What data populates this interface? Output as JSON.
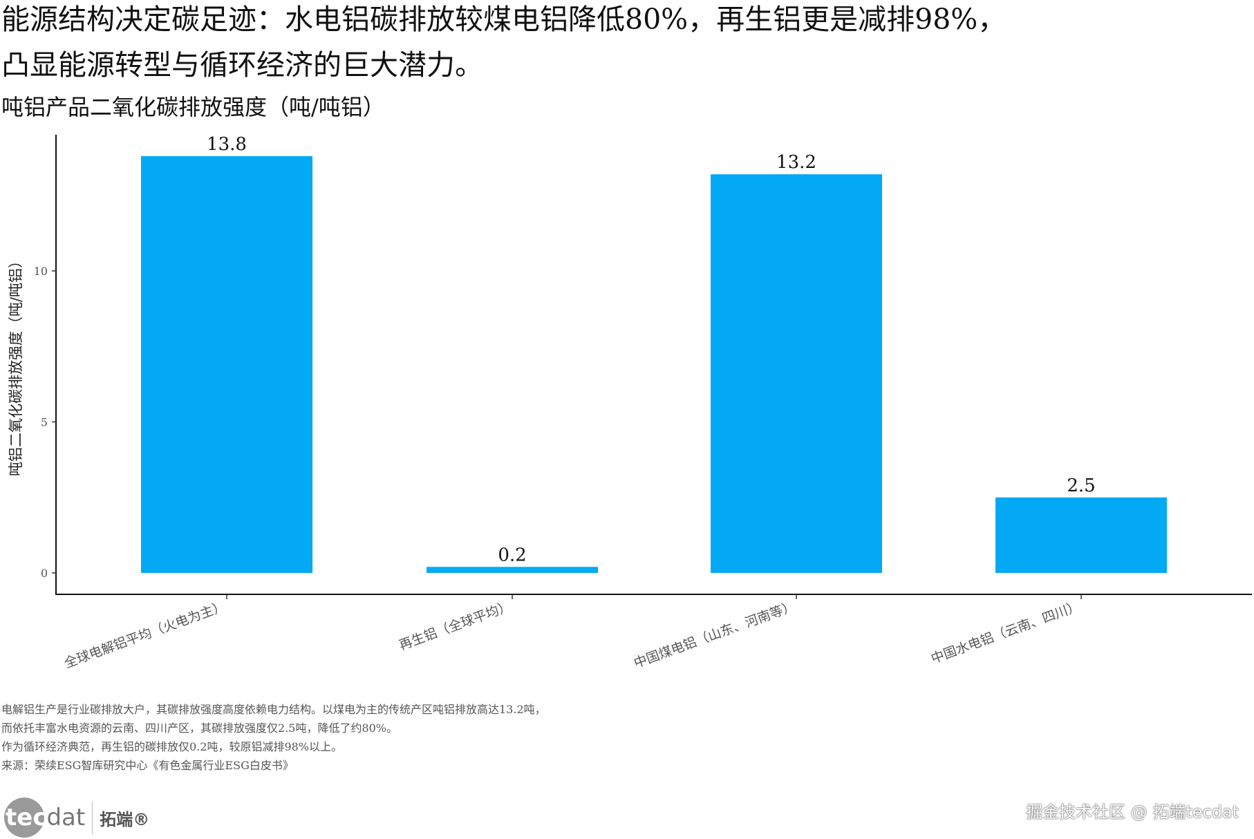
{
  "title_line1": "能源结构决定碳足迹：水电铝碳排放较煤电铝降低80%，再生铝更是减排98%，",
  "title_line2": "凸显能源转型与循环经济的巨大潜力。",
  "subtitle": "吨铝产品二氧化碳排放强度（吨/吨铝）",
  "chart_data": {
    "type": "bar",
    "title": "吨铝产品二氧化碳排放强度（吨/吨铝）",
    "xlabel": "",
    "ylabel": "吨铝二氧化碳排放强度（吨/吨铝）",
    "categories": [
      "全球电解铝平均（火电为主）",
      "再生铝（全球平均）",
      "中国煤电铝（山东、河南等）",
      "中国水电铝（云南、四川）"
    ],
    "values": [
      13.8,
      0.2,
      13.2,
      2.5
    ],
    "value_labels": [
      "13.8",
      "0.2",
      "13.2",
      "2.5"
    ],
    "yticks": [
      0,
      5,
      10
    ],
    "ytick_labels": [
      "0",
      "5",
      "10"
    ],
    "ylim": [
      0,
      14.5
    ],
    "grid": false,
    "bar_color": "#03A9F4"
  },
  "notes": [
    "电解铝生产是行业碳排放大户，其碳排放强度高度依赖电力结构。以煤电为主的传统产区吨铝排放高达13.2吨，",
    "而依托丰富水电资源的云南、四川产区，其碳排放强度仅2.5吨，降低了约80%。",
    "作为循环经济典范，再生铝的碳排放仅0.2吨，较原铝减排98%以上。",
    "来源：荣续ESG智库研究中心《有色金属行业ESG白皮书》"
  ],
  "logo": {
    "text_a": "tec",
    "text_b": "dat",
    "cn": "拓端®"
  },
  "watermark": "掘金技术社区 @ 拓端tecdat"
}
